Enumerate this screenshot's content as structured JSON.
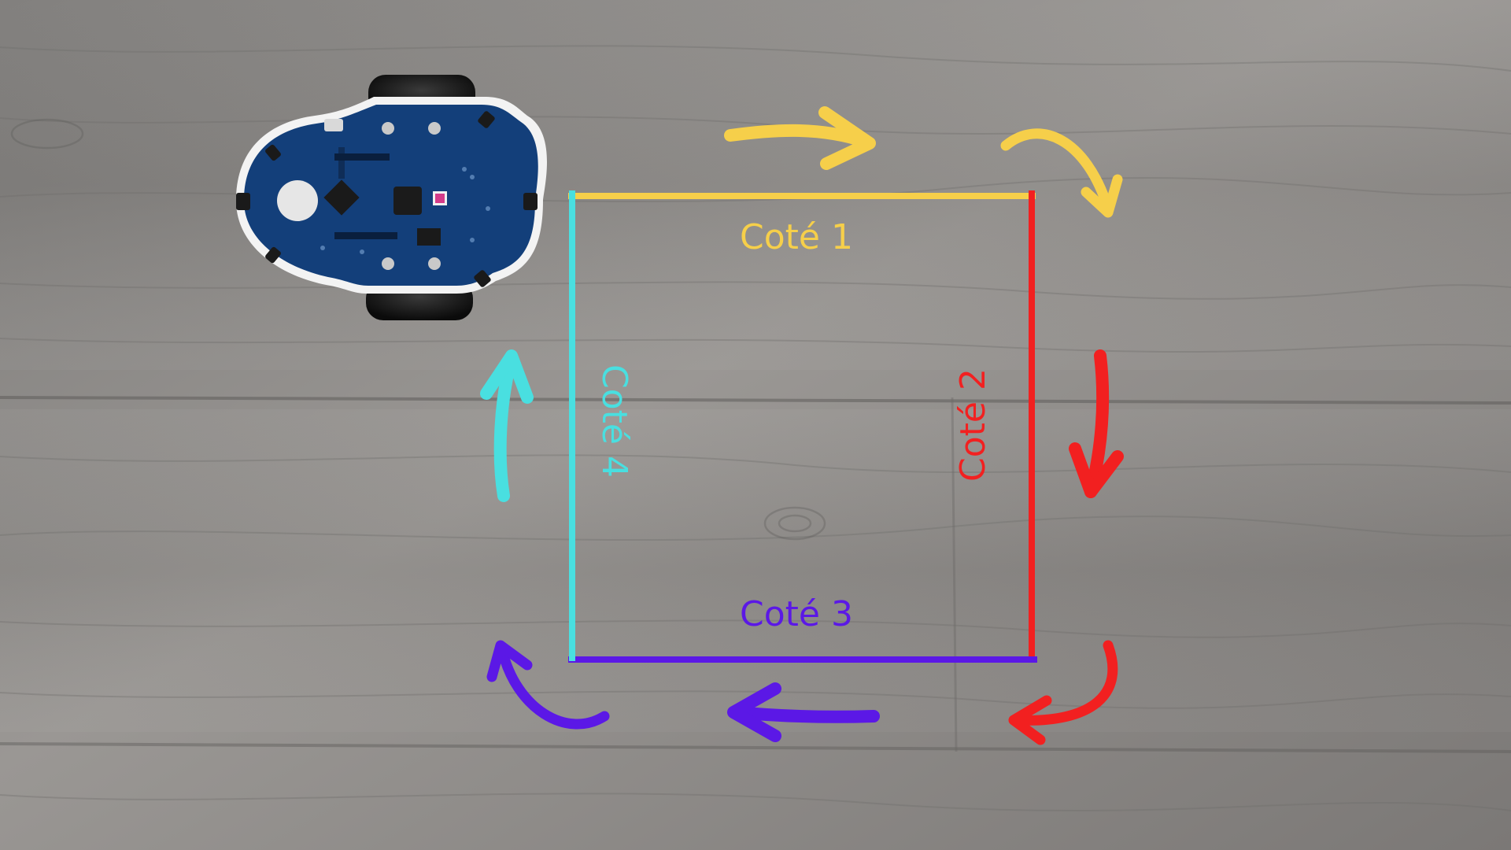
{
  "diagram": {
    "sides": [
      {
        "id": "side-1",
        "label": "Coté 1",
        "color": "#f6cf4a"
      },
      {
        "id": "side-2",
        "label": "Coté 2",
        "color": "#f22020"
      },
      {
        "id": "side-3",
        "label": "Coté 3",
        "color": "#5b18e6"
      },
      {
        "id": "side-4",
        "label": "Coté 4",
        "color": "#49dfe0"
      }
    ],
    "direction": "clockwise",
    "robot_icon": "robot-board-icon",
    "background": "wood-floor"
  }
}
